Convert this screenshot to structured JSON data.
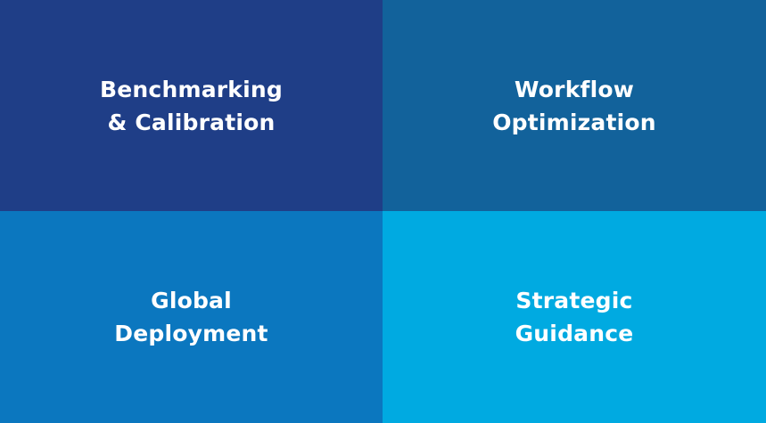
{
  "tiles": [
    {
      "id": "benchmarking",
      "lines": [
        "Benchmarking",
        "& Calibration"
      ],
      "color": "#1f3e87"
    },
    {
      "id": "workflow",
      "lines": [
        "Workflow",
        "Optimization"
      ],
      "color": "#12629b"
    },
    {
      "id": "global",
      "lines": [
        "Global",
        "Deployment"
      ],
      "color": "#0b77bf"
    },
    {
      "id": "strategic",
      "lines": [
        "Strategic",
        "Guidance"
      ],
      "color": "#00aae1"
    }
  ]
}
